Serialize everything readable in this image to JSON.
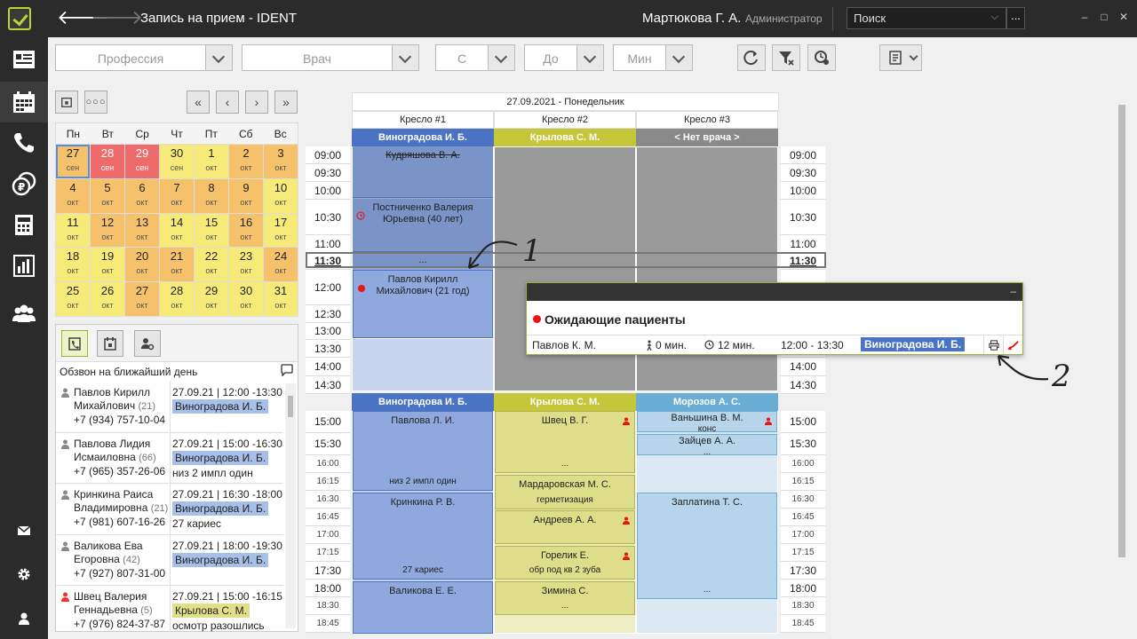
{
  "titlebar": {
    "title": "Запись на прием  -  IDENT",
    "user_name": "Мартюкова Г. А.",
    "user_role": "Администратор",
    "search_placeholder": "Поиск",
    "search_more": "...",
    "minimize": "–",
    "maximize": "□",
    "close": "✕"
  },
  "filters": {
    "profession": "Профессия",
    "doctor": "Врач",
    "from": "С",
    "to": "До",
    "min": "Мин"
  },
  "calendar": {
    "weekdays": [
      "Пн",
      "Вт",
      "Ср",
      "Чт",
      "Пт",
      "Сб",
      "Вс"
    ],
    "cells": [
      {
        "d": "27",
        "m": "сен",
        "c": "o",
        "sel": true
      },
      {
        "d": "28",
        "m": "сен",
        "c": "r"
      },
      {
        "d": "29",
        "m": "сен",
        "c": "r"
      },
      {
        "d": "30",
        "m": "сен",
        "c": "y"
      },
      {
        "d": "1",
        "m": "окт",
        "c": "y"
      },
      {
        "d": "2",
        "m": "окт",
        "c": "o"
      },
      {
        "d": "3",
        "m": "окт",
        "c": "o"
      },
      {
        "d": "4",
        "m": "окт",
        "c": "o"
      },
      {
        "d": "5",
        "m": "окт",
        "c": "o"
      },
      {
        "d": "6",
        "m": "окт",
        "c": "o"
      },
      {
        "d": "7",
        "m": "окт",
        "c": "o"
      },
      {
        "d": "8",
        "m": "окт",
        "c": "o"
      },
      {
        "d": "9",
        "m": "окт",
        "c": "o"
      },
      {
        "d": "10",
        "m": "окт",
        "c": "y"
      },
      {
        "d": "11",
        "m": "окт",
        "c": "y"
      },
      {
        "d": "12",
        "m": "окт",
        "c": "o"
      },
      {
        "d": "13",
        "m": "окт",
        "c": "o"
      },
      {
        "d": "14",
        "m": "окт",
        "c": "y"
      },
      {
        "d": "15",
        "m": "окт",
        "c": "y"
      },
      {
        "d": "16",
        "m": "окт",
        "c": "o"
      },
      {
        "d": "17",
        "m": "окт",
        "c": "y"
      },
      {
        "d": "18",
        "m": "окт",
        "c": "y"
      },
      {
        "d": "19",
        "m": "окт",
        "c": "y"
      },
      {
        "d": "20",
        "m": "окт",
        "c": "o"
      },
      {
        "d": "21",
        "m": "окт",
        "c": "o"
      },
      {
        "d": "22",
        "m": "окт",
        "c": "y"
      },
      {
        "d": "23",
        "m": "окт",
        "c": "y"
      },
      {
        "d": "24",
        "m": "окт",
        "c": "o"
      },
      {
        "d": "25",
        "m": "окт",
        "c": "y"
      },
      {
        "d": "26",
        "m": "окт",
        "c": "y"
      },
      {
        "d": "27",
        "m": "окт",
        "c": "o"
      },
      {
        "d": "28",
        "m": "окт",
        "c": "y"
      },
      {
        "d": "29",
        "m": "окт",
        "c": "y"
      },
      {
        "d": "30",
        "m": "окт",
        "c": "y"
      },
      {
        "d": "31",
        "m": "окт",
        "c": "y"
      }
    ]
  },
  "calls": {
    "title": "Обзвон на ближайший день",
    "items": [
      {
        "name": "Павлов Кирилл Михайлович",
        "age": "(21)",
        "phone": "+7 (934) 757-10-04",
        "date": "27.09.21",
        "time": "12:00 -13:30",
        "doctor": "Виноградова И. Б.",
        "doc_color": "blue",
        "note": "",
        "red": false
      },
      {
        "name": "Павлова Лидия Исмаиловна",
        "age": "(66)",
        "phone": "+7 (965) 357-26-06",
        "date": "27.09.21",
        "time": "15:00 -16:30",
        "doctor": "Виноградова И. Б.",
        "doc_color": "blue",
        "note": "низ 2 импл один",
        "red": false
      },
      {
        "name": "Кринкина Раиса Владимировна",
        "age": "(21)",
        "phone": "+7 (981) 607-16-26",
        "date": "27.09.21",
        "time": "16:30 -18:00",
        "doctor": "Виноградова И. Б.",
        "doc_color": "blue",
        "note": "27 кариес",
        "red": false
      },
      {
        "name": "Валикова Ева Егоровна",
        "age": "(42)",
        "phone": "+7 (927) 807-31-00",
        "date": "27.09.21",
        "time": "18:00 -19:30",
        "doctor": "Виноградова И. Б.",
        "doc_color": "blue",
        "note": "",
        "red": false
      },
      {
        "name": "Швец Валерия Геннадьевна",
        "age": "(5)",
        "phone": "+7 (976) 824-37-87",
        "date": "27.09.21",
        "time": "15:00 -16:15",
        "doctor": "Крылова С. М.",
        "doc_color": "green",
        "note": "осмотр разошлись",
        "red": true
      }
    ]
  },
  "schedule": {
    "date": "27.09.2021 - Понедельник",
    "chairs": [
      "Кресло #1",
      "Кресло #2",
      "Кресло #3"
    ],
    "doctors_top": [
      "Виноградова И. Б.",
      "Крылова С. М.",
      "< Нет врача >"
    ],
    "doctors_bottom": [
      "Виноградова И. Б.",
      "Крылова С. М.",
      "Морозов А. С."
    ],
    "times_top": [
      "09:00",
      "09:30",
      "10:00",
      "10:30",
      "11:00",
      "11:30",
      "12:00",
      "12:30",
      "13:00",
      "13:30",
      "14:00",
      "14:30"
    ],
    "times_bottom": [
      "15:00",
      "15:30",
      "16:00",
      "16:15",
      "16:30",
      "16:45",
      "17:00",
      "17:15",
      "17:30",
      "18:00",
      "18:30",
      "18:45"
    ],
    "appts": {
      "a1": "Кудряшова В. А.",
      "a2": "Постниченко Валерия Юрьевна (40 лет)",
      "a3": "...",
      "a4": "Павлов Кирилл Михайлович (21 год)",
      "b1": "Павлова Л. И.",
      "b1n": "низ 2 импл один",
      "b2": "Кринкина Р. В.",
      "b2n": "27 кариес",
      "b3": "Валикова Е. Е.",
      "c1": "Швец В. Г.",
      "c1n": "...",
      "c2": "Мардаровская М. С.",
      "c2n": "герметизация",
      "c3": "Андреев А. А.",
      "c4": "Горелик Е.",
      "c4n": "обр под кв 2 зуба",
      "c5": "Зимина С.",
      "c5n": "...",
      "d1": "Ваньшина В. М.",
      "d1n": "конс",
      "d2": "Зайцев А. А.",
      "d2n": "...",
      "d3": "Заплатина Т. С.",
      "d3n": "..."
    }
  },
  "popup": {
    "title": "Ожидающие пациенты",
    "minimize": "–",
    "patient": "Павлов К. М.",
    "wait": "0 мин.",
    "duration": "12 мин.",
    "time": "12:00 - 13:30",
    "doctor": "Виноградова И. Б."
  },
  "annotations": {
    "one": "1",
    "two": "2"
  },
  "colors": {
    "doc_blue": "#4a73c4",
    "doc_green": "#c6c63a",
    "doc_none": "#8a8a8a",
    "doc_teal": "#6aaed6",
    "appt_blue": "#8fa9de",
    "appt_green": "#dede8a",
    "appt_teal": "#b6d4ea"
  }
}
